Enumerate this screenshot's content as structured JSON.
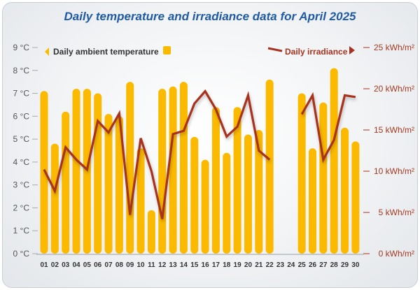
{
  "chart_data": {
    "type": "bar+line",
    "title": "Daily temperature and irradiance data for April 2025",
    "categories": [
      "01",
      "02",
      "03",
      "04",
      "05",
      "06",
      "07",
      "08",
      "09",
      "10",
      "11",
      "12",
      "13",
      "14",
      "15",
      "16",
      "17",
      "18",
      "19",
      "20",
      "21",
      "22",
      "23",
      "24",
      "25",
      "26",
      "27",
      "28",
      "29",
      "30"
    ],
    "series": [
      {
        "name": "Daily ambient temperature",
        "type": "bar",
        "axis": "left",
        "color": "#fbb900",
        "values": [
          7.1,
          4.8,
          6.2,
          7.2,
          7.2,
          7.0,
          6.1,
          6.0,
          7.5,
          4.6,
          1.9,
          7.2,
          7.3,
          7.5,
          5.1,
          4.1,
          6.4,
          4.4,
          6.4,
          5.2,
          5.4,
          7.6,
          null,
          null,
          7.0,
          4.6,
          6.6,
          8.1,
          5.5,
          4.9
        ]
      },
      {
        "name": "Daily irradiance",
        "type": "line",
        "axis": "right",
        "color": "#a8321f",
        "values": [
          10.2,
          7.6,
          12.9,
          11.4,
          10.2,
          16.1,
          14.7,
          17.0,
          4.7,
          14.0,
          10.0,
          4.2,
          14.5,
          14.9,
          18.2,
          19.7,
          17.5,
          14.2,
          15.4,
          19.2,
          12.5,
          11.4,
          null,
          null,
          16.9,
          19.2,
          11.4,
          13.8,
          19.2,
          19.0
        ]
      }
    ],
    "y_left": {
      "ylim": [
        0,
        9
      ],
      "ticks": [
        "0 °C",
        "1 °C",
        "2 °C",
        "3 °C",
        "4 °C",
        "5 °C",
        "6 °C",
        "7 °C",
        "8 °C",
        "9 °C"
      ]
    },
    "y_right": {
      "ylim": [
        0,
        25
      ],
      "ticks": [
        "0 kWh/m²",
        "5 kWh/m²",
        "10 kWh/m²",
        "15 kWh/m²",
        "20 kWh/m²",
        "25 kWh/m²"
      ]
    },
    "legend": {
      "left_label": "Daily ambient temperature",
      "right_label": "Daily irradiance",
      "placement": "top"
    }
  }
}
